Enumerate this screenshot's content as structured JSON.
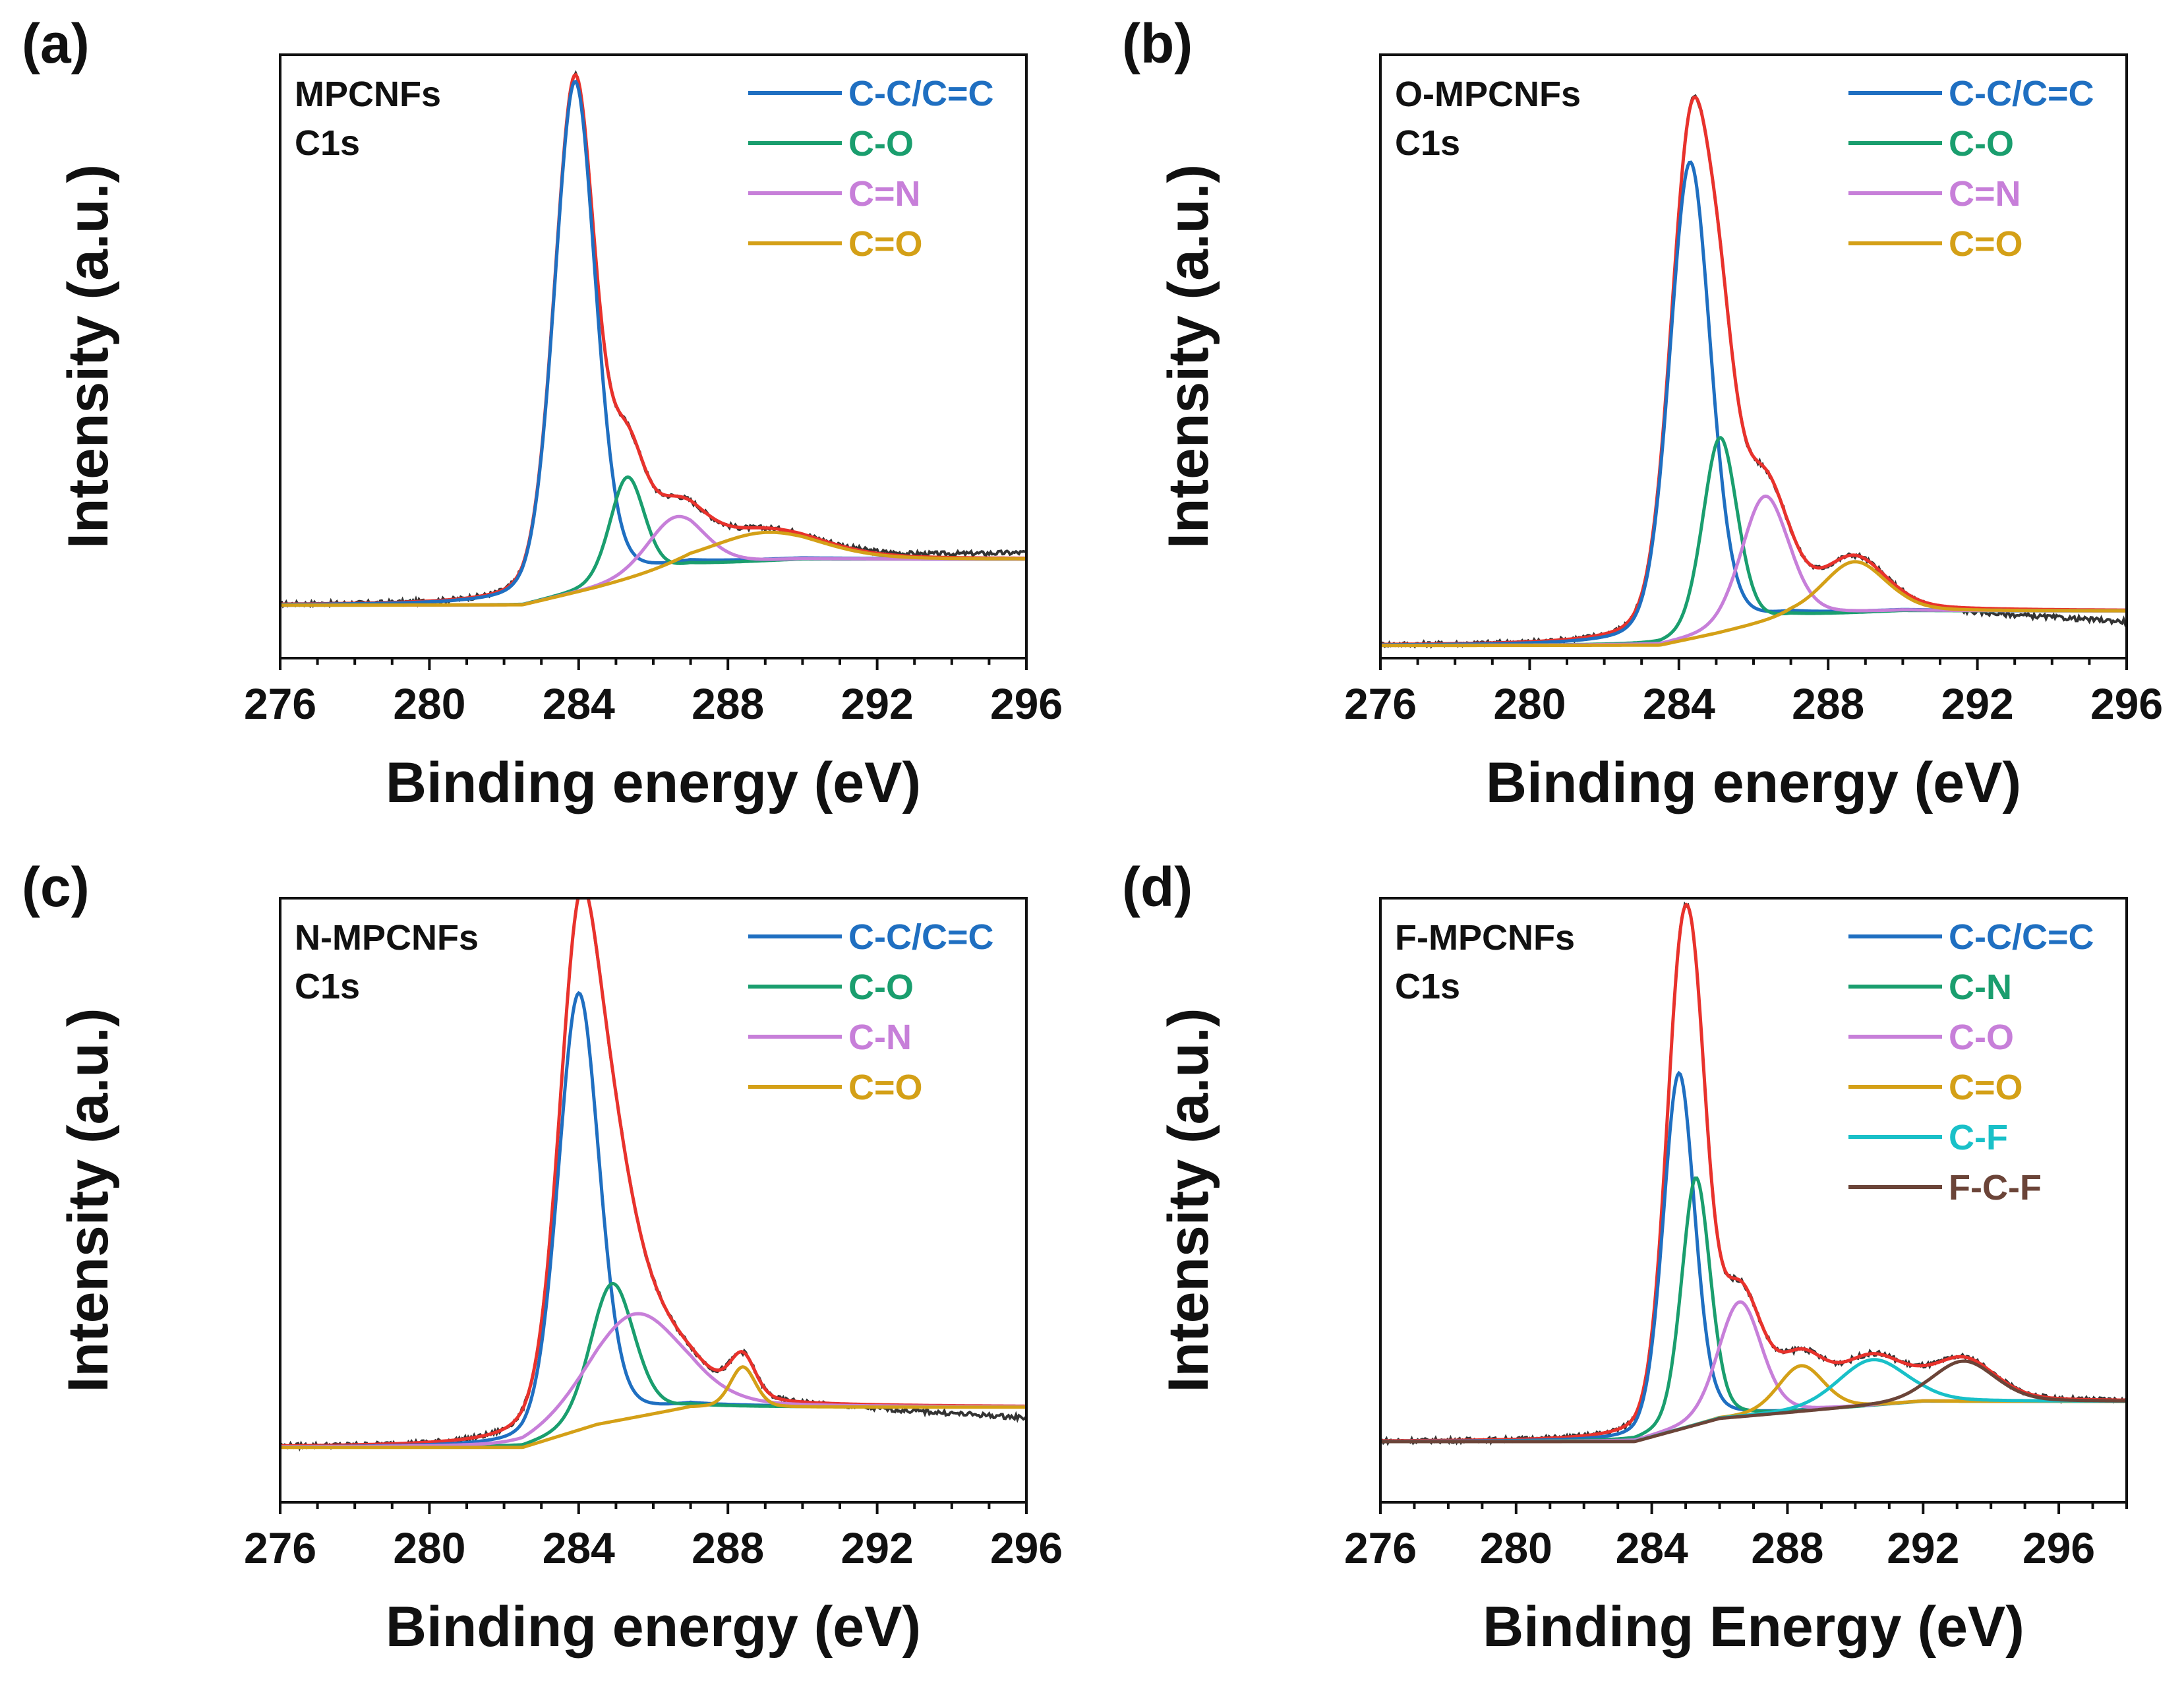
{
  "chart_data": [
    {
      "type": "line",
      "panel_label": "(a)",
      "sample_label": "MPCNFs",
      "core_level": "C1s",
      "xlabel": "Binding energy (eV)",
      "ylabel": "Intensity (a.u.)",
      "xlim": [
        276,
        296
      ],
      "xticks": [
        "276",
        "280",
        "284",
        "288",
        "292",
        "296"
      ],
      "ylim": [
        0,
        1.1
      ],
      "envelope_color": "#e8322c",
      "raw_color": "#333333",
      "background": [
        [
          276,
          0.1
        ],
        [
          282.5,
          0.1
        ],
        [
          284.5,
          0.13
        ],
        [
          287,
          0.17
        ],
        [
          290,
          0.18
        ],
        [
          296,
          0.18
        ]
      ],
      "raw_end": 0.19,
      "components": [
        {
          "name": "C-C/C=C",
          "color": "#1f6fc1",
          "center": 283.9,
          "height": 0.89,
          "fwhm": 1.3
        },
        {
          "name": "C-O",
          "color": "#1a9e6e",
          "center": 285.3,
          "height": 0.18,
          "fwhm": 1.1
        },
        {
          "name": "C=N",
          "color": "#c77fd9",
          "center": 286.6,
          "height": 0.09,
          "fwhm": 1.8
        },
        {
          "name": "C=O",
          "color": "#d4a017",
          "center": 289.0,
          "height": 0.05,
          "fwhm": 3.5
        }
      ]
    },
    {
      "type": "line",
      "panel_label": "(b)",
      "sample_label": "O-MPCNFs",
      "core_level": "C1s",
      "xlabel": "Binding energy (eV)",
      "ylabel": "Intensity (a.u.)",
      "xlim": [
        276,
        296
      ],
      "xticks": [
        "276",
        "280",
        "284",
        "288",
        "292",
        "296"
      ],
      "ylim": [
        0,
        1.1
      ],
      "envelope_color": "#e8322c",
      "raw_color": "#333333",
      "background": [
        [
          276,
          0.03
        ],
        [
          283.5,
          0.03
        ],
        [
          285,
          0.05
        ],
        [
          287,
          0.08
        ],
        [
          290,
          0.09
        ],
        [
          296,
          0.09
        ]
      ],
      "raw_end": 0.07,
      "components": [
        {
          "name": "C-C/C=C",
          "color": "#1f6fc1",
          "center": 284.3,
          "height": 0.83,
          "fwhm": 1.3
        },
        {
          "name": "C-O",
          "color": "#1a9e6e",
          "center": 285.1,
          "height": 0.34,
          "fwhm": 1.1
        },
        {
          "name": "C=N",
          "color": "#c77fd9",
          "center": 286.3,
          "height": 0.22,
          "fwhm": 1.5
        },
        {
          "name": "C=O",
          "color": "#d4a017",
          "center": 288.7,
          "height": 0.09,
          "fwhm": 2.0
        }
      ]
    },
    {
      "type": "line",
      "panel_label": "(c)",
      "sample_label": "N-MPCNFs",
      "core_level": "C1s",
      "xlabel": "Binding energy (eV)",
      "ylabel": "Intensity (a.u.)",
      "xlim": [
        276,
        296
      ],
      "xticks": [
        "276",
        "280",
        "284",
        "288",
        "292",
        "296"
      ],
      "ylim": [
        0,
        1.1
      ],
      "envelope_color": "#e8322c",
      "raw_color": "#333333",
      "background": [
        [
          276,
          0.1
        ],
        [
          282.5,
          0.1
        ],
        [
          284.5,
          0.14
        ],
        [
          287,
          0.17
        ],
        [
          290,
          0.17
        ],
        [
          296,
          0.17
        ]
      ],
      "raw_end": 0.15,
      "components": [
        {
          "name": "C-C/C=C",
          "color": "#1f6fc1",
          "center": 284.0,
          "height": 0.76,
          "fwhm": 1.3
        },
        {
          "name": "C-O",
          "color": "#1a9e6e",
          "center": 284.9,
          "height": 0.24,
          "fwhm": 1.4
        },
        {
          "name": "C-N",
          "color": "#c77fd9",
          "center": 285.5,
          "height": 0.18,
          "fwhm": 3.0
        },
        {
          "name": "C=O",
          "color": "#d4a017",
          "center": 288.4,
          "height": 0.07,
          "fwhm": 0.8
        }
      ]
    },
    {
      "type": "line",
      "panel_label": "(d)",
      "sample_label": "F-MPCNFs",
      "core_level": "C1s",
      "xlabel": "Binding Energy (eV)",
      "ylabel": "Intensity (a.u.)",
      "xlim": [
        276,
        298
      ],
      "xticks": [
        "276",
        "280",
        "284",
        "288",
        "292",
        "296"
      ],
      "ylim": [
        0,
        1.1
      ],
      "envelope_color": "#e8322c",
      "raw_color": "#333333",
      "background": [
        [
          276,
          0.11
        ],
        [
          283.5,
          0.11
        ],
        [
          286,
          0.15
        ],
        [
          292,
          0.18
        ],
        [
          298,
          0.18
        ]
      ],
      "raw_end": 0.18,
      "components": [
        {
          "name": "C-C/C=C",
          "color": "#1f6fc1",
          "center": 284.8,
          "height": 0.62,
          "fwhm": 1.1
        },
        {
          "name": "C-N",
          "color": "#1a9e6e",
          "center": 285.3,
          "height": 0.43,
          "fwhm": 1.0
        },
        {
          "name": "C-O",
          "color": "#c77fd9",
          "center": 286.6,
          "height": 0.2,
          "fwhm": 1.5
        },
        {
          "name": "C=O",
          "color": "#d4a017",
          "center": 288.4,
          "height": 0.08,
          "fwhm": 1.6
        },
        {
          "name": "C-F",
          "color": "#19c0c8",
          "center": 290.5,
          "height": 0.08,
          "fwhm": 2.4
        },
        {
          "name": "F-C-F",
          "color": "#6b4438",
          "center": 293.2,
          "height": 0.07,
          "fwhm": 2.2
        }
      ]
    }
  ]
}
